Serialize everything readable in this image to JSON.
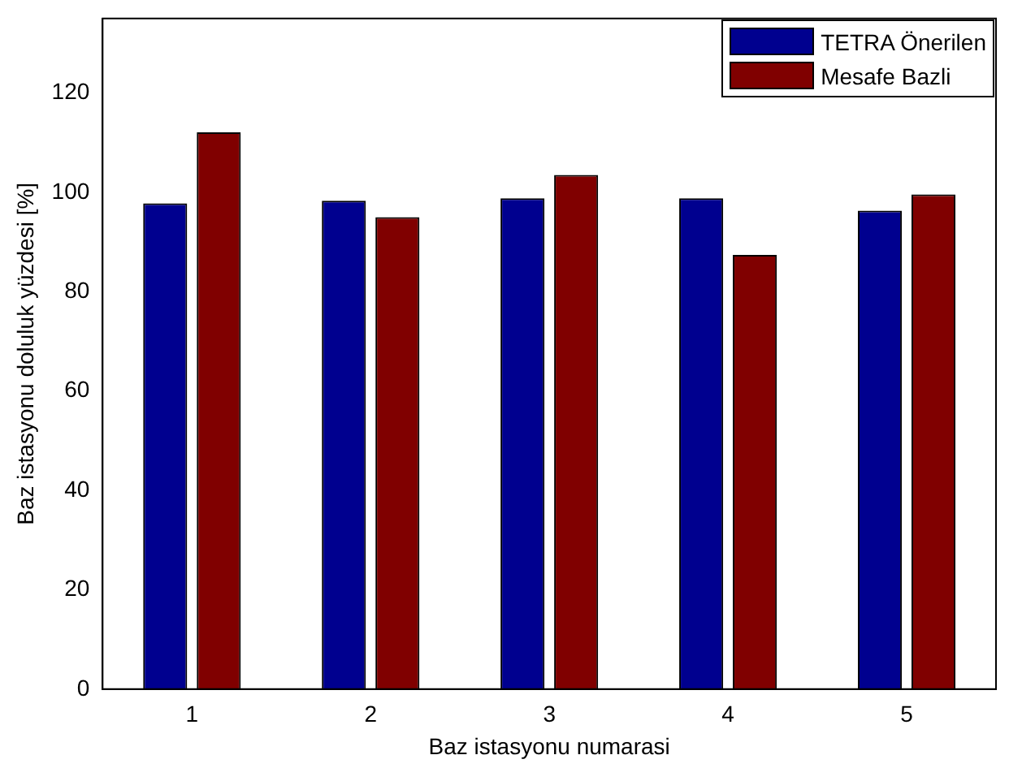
{
  "chart_data": {
    "type": "bar",
    "xlabel": "Baz istasyonu numarasi",
    "ylabel": "Baz istasyonu doluluk yüzdesi [%]",
    "categories": [
      "1",
      "2",
      "3",
      "4",
      "5"
    ],
    "series": [
      {
        "name": "TETRA Önerilen",
        "color": "#00008f",
        "values": [
          97.8,
          98.3,
          98.8,
          98.8,
          96.3
        ]
      },
      {
        "name": "Mesafe Bazli",
        "color": "#800000",
        "values": [
          112.1,
          95.0,
          103.5,
          87.4,
          99.6
        ]
      }
    ],
    "ylim": [
      0,
      135
    ],
    "yticks": [
      0,
      20,
      40,
      60,
      80,
      100,
      120
    ],
    "grid": false,
    "legend": "top right"
  }
}
